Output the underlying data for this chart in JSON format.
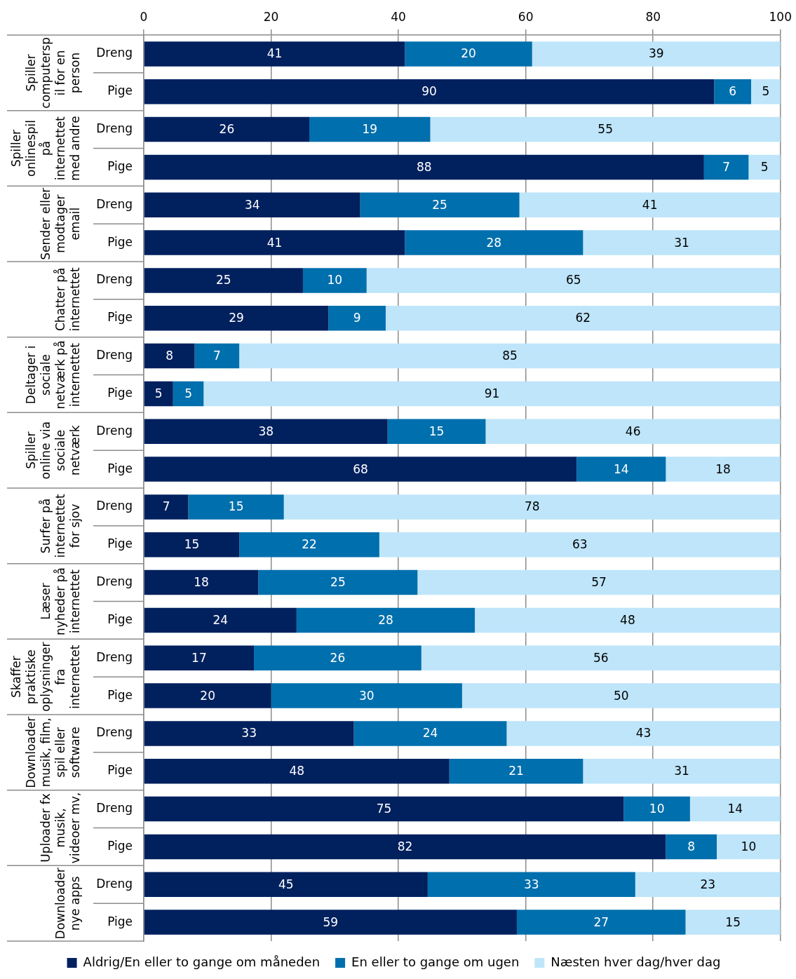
{
  "chart_data": {
    "type": "bar",
    "orientation": "horizontal",
    "stacked": true,
    "categories": [
      "Dreng",
      "Pige",
      "Dreng",
      "Pige",
      "Dreng",
      "Pige",
      "Dreng",
      "Pige",
      "Dreng",
      "Pige",
      "Dreng",
      "Pige",
      "Dreng",
      "Pige",
      "Dreng",
      "Pige",
      "Dreng",
      "Pige",
      "Dreng",
      "Pige",
      "Dreng",
      "Pige",
      "Dreng",
      "Pige"
    ],
    "series": [
      {
        "name": "Aldrig/En eller to gange om måneden",
        "color": "#00205e",
        "values": [
          41,
          89.6,
          26,
          88,
          34,
          41,
          25,
          29,
          8,
          4.6,
          38.3,
          68,
          7,
          15,
          18,
          24,
          17.3,
          20,
          33,
          48,
          75.4,
          82,
          44.6,
          58.6
        ],
        "value_labels": [
          "41",
          "90",
          "26",
          "88",
          "34",
          "41",
          "25",
          "29",
          "8",
          "5",
          "38",
          "68",
          "7",
          "15",
          "18",
          "24",
          "17",
          "20",
          "33",
          "48",
          "75",
          "82",
          "45",
          "59"
        ]
      },
      {
        "name": "En eller to gange om ugen",
        "color": "#006fad",
        "values": [
          20,
          5.8,
          19,
          7,
          25,
          28,
          10,
          9,
          7,
          4.8,
          15.4,
          14,
          15,
          22,
          25,
          28,
          26.3,
          30,
          24,
          21,
          10.4,
          8,
          32.6,
          26.5
        ],
        "value_labels": [
          "20",
          "6",
          "19",
          "7",
          "25",
          "28",
          "10",
          "9",
          "7",
          "5",
          "15",
          "14",
          "15",
          "22",
          "25",
          "28",
          "26",
          "30",
          "24",
          "21",
          "10",
          "8",
          "33",
          "27"
        ]
      },
      {
        "name": "Næsten hver dag/hver dag",
        "color": "#bee5fa",
        "values": [
          39,
          4.6,
          55,
          5,
          41,
          31,
          65,
          62,
          85,
          90.6,
          46.3,
          18,
          78,
          63,
          57,
          48,
          56.4,
          50,
          43,
          31,
          14.2,
          10,
          22.8,
          14.9
        ],
        "value_labels": [
          "39",
          "5",
          "55",
          "5",
          "41",
          "31",
          "65",
          "62",
          "85",
          "91",
          "46",
          "18",
          "78",
          "63",
          "57",
          "48",
          "56",
          "50",
          "43",
          "31",
          "14",
          "10",
          "23",
          "15"
        ]
      }
    ],
    "xlim": [
      0,
      100
    ],
    "xticks": [
      0,
      20,
      40,
      60,
      80,
      100
    ],
    "grid": "x",
    "legend": "bottom",
    "annotations": [
      "Spiller computerspil for en person",
      "Spiller onlinespil på internettet med andre",
      "Sender eller modtager email",
      "Chatter på internettet",
      "Deltager i sociale netværk på internettet",
      "Spiller online via sociale netværk",
      "Surfer på internettet for sjov",
      "Læser nyheder på internettet",
      "Skaffer praktiske oplysninger fra internettet",
      "Downloader musik, film, spil eller software",
      "Uploader fx musik, videoer mv,",
      "Downloader nye apps"
    ]
  }
}
